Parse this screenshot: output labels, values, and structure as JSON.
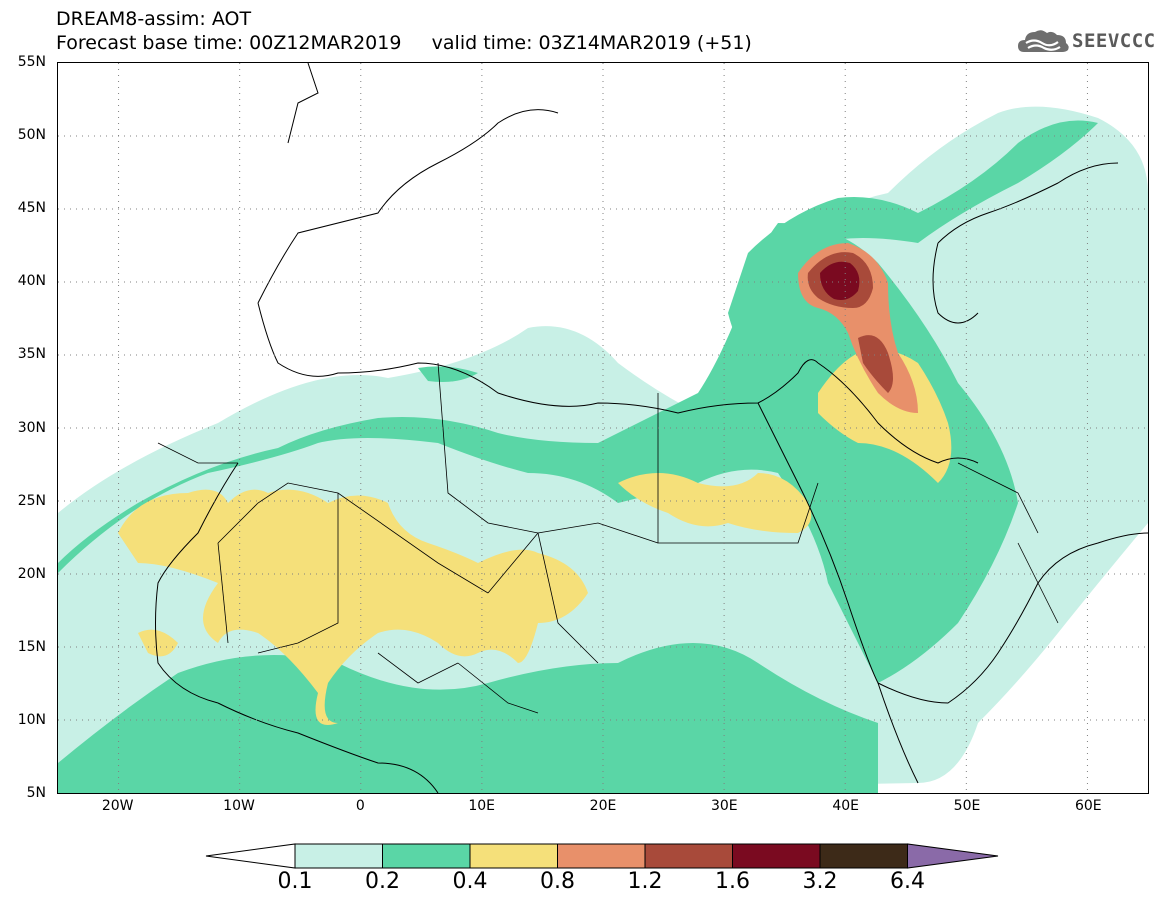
{
  "title": {
    "line1": "DREAM8-assim: AOT",
    "line2": "Forecast base time: 00Z12MAR2019     valid time: 03Z14MAR2019 (+51)"
  },
  "logo": {
    "text": "SEEVCCC",
    "icon": "cloud-logo-icon"
  },
  "map": {
    "lat_ticks": [
      "55N",
      "50N",
      "45N",
      "40N",
      "35N",
      "30N",
      "25N",
      "20N",
      "15N",
      "10N",
      "5N"
    ],
    "lon_ticks": [
      "20W",
      "10W",
      "0",
      "10E",
      "20E",
      "30E",
      "40E",
      "50E",
      "60E"
    ],
    "extent": {
      "lon_min": -25,
      "lon_max": 65,
      "lat_min": 5,
      "lat_max": 55
    },
    "grid": "dotted"
  },
  "colorbar": {
    "labels": [
      "0.1",
      "0.2",
      "0.4",
      "0.8",
      "1.2",
      "1.6",
      "3.2",
      "6.4"
    ],
    "colors": [
      "#ffffff",
      "#c8f0e6",
      "#5ad6a6",
      "#f5e07a",
      "#e8906a",
      "#a84a3a",
      "#7a0a20",
      "#3d2a18",
      "#8a6aa8"
    ]
  }
}
